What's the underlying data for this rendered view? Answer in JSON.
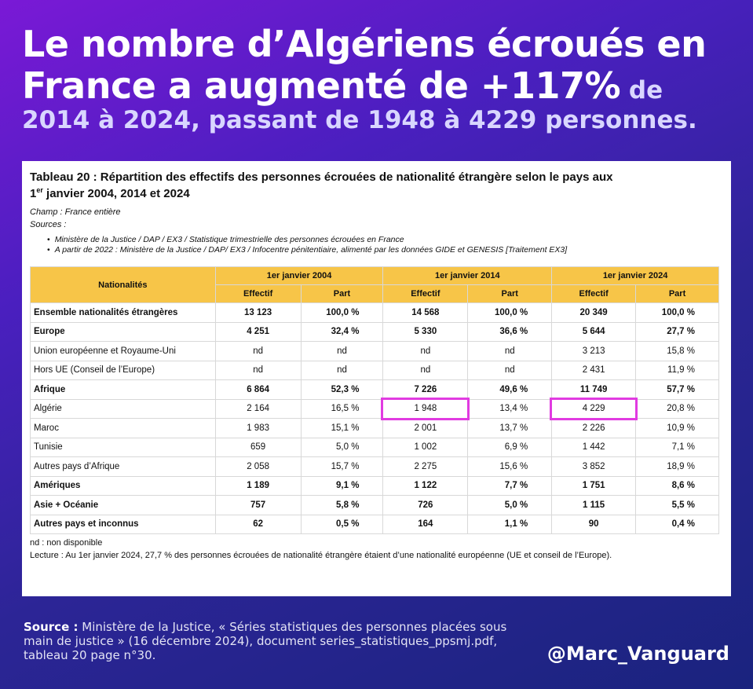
{
  "headline": {
    "line1": "Le nombre d’Algériens écroués en",
    "line2_big": "France a augmenté de +117%",
    "line2_small": " de",
    "line3": "2014 à 2024, passant de 1948 à 4229 personnes."
  },
  "table_block": {
    "title": "Tableau 20 : Répartition des effectifs des personnes écrouées de nationalité étrangère selon le pays aux",
    "title_prefix": "1",
    "title_sup": "er",
    "title_line2": " janvier 2004, 2014 et 2024",
    "champ": "Champ : France entière",
    "sources_label": "Sources :",
    "bullets": [
      "Ministère de la Justice / DAP / EX3 / Statistique trimestrielle des personnes écrouées en France",
      "A partir de 2022 : Ministère de la Justice / DAP/ EX3 / Infocentre pénitentiaire, alimenté par les données GIDE et GENESIS [Traitement EX3]"
    ],
    "headers": {
      "nationalites": "Nationalités",
      "years": [
        "1er janvier 2004",
        "1er janvier 2014",
        "1er janvier 2024"
      ],
      "effectif": "Effectif",
      "part": "Part"
    },
    "rows": [
      {
        "name": "Ensemble nationalités étrangères",
        "v": [
          "13 123",
          "100,0 %",
          "14 568",
          "100,0 %",
          "20 349",
          "100,0 %"
        ]
      },
      {
        "name": "Europe",
        "v": [
          "4 251",
          "32,4 %",
          "5 330",
          "36,6 %",
          "5 644",
          "27,7 %"
        ]
      },
      {
        "name": "Union européenne et Royaume-Uni",
        "v": [
          "nd",
          "nd",
          "nd",
          "nd",
          "3 213",
          "15,8 %"
        ]
      },
      {
        "name": "Hors UE (Conseil de l’Europe)",
        "v": [
          "nd",
          "nd",
          "nd",
          "nd",
          "2 431",
          "11,9 %"
        ]
      },
      {
        "name": "Afrique",
        "v": [
          "6 864",
          "52,3 %",
          "7 226",
          "49,6 %",
          "11 749",
          "57,7 %"
        ]
      },
      {
        "name": "Algérie",
        "v": [
          "2 164",
          "16,5 %",
          "1 948",
          "13,4 %",
          "4 229",
          "20,8 %"
        ]
      },
      {
        "name": "Maroc",
        "v": [
          "1 983",
          "15,1 %",
          "2 001",
          "13,7 %",
          "2 226",
          "10,9 %"
        ]
      },
      {
        "name": "Tunisie",
        "v": [
          "659",
          "5,0 %",
          "1 002",
          "6,9 %",
          "1 442",
          "7,1 %"
        ]
      },
      {
        "name": "Autres pays d’Afrique",
        "v": [
          "2 058",
          "15,7 %",
          "2 275",
          "15,6 %",
          "3 852",
          "18,9 %"
        ]
      },
      {
        "name": "Amériques",
        "v": [
          "1 189",
          "9,1 %",
          "1 122",
          "7,7 %",
          "1 751",
          "8,6 %"
        ]
      },
      {
        "name": "Asie + Océanie",
        "v": [
          "757",
          "5,8 %",
          "726",
          "5,0 %",
          "1 115",
          "5,5 %"
        ]
      },
      {
        "name": "Autres pays et inconnus",
        "v": [
          "62",
          "0,5 %",
          "164",
          "1,1 %",
          "90",
          "0,4 %"
        ]
      }
    ],
    "note_nd": "nd : non disponible",
    "lecture": "Lecture : Au 1er janvier 2024, 27,7 % des personnes écrouées de nationalité étrangère étaient d’une nationalité européenne (UE et conseil de l’Europe)."
  },
  "footer": {
    "source_label": "Source :",
    "source_text": " Ministère de la Justice, « Séries statistiques des personnes placées sous main de justice » (16 décembre 2024), document series_statistiques_ppsmj.pdf, tableau 20 page n°30.",
    "handle": "@Marc_Vanguard"
  },
  "colors": {
    "header_fill": "#f7c548",
    "highlight": "#e13be1"
  }
}
